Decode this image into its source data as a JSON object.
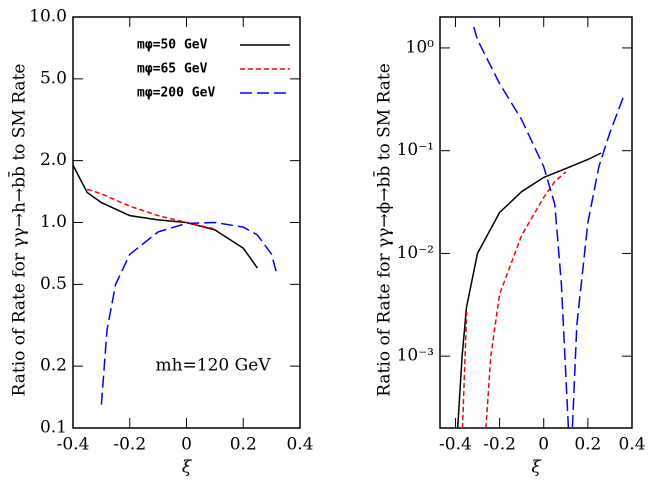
{
  "chart_data": [
    {
      "type": "line",
      "ylabel": "Ratio of Rate for γγ→h→bb̄ to SM Rate",
      "xlabel": "ξ",
      "annotation": "mh=120 GeV",
      "log_y": true,
      "xlim": [
        -0.4,
        0.4
      ],
      "xticks": [
        -0.4,
        -0.2,
        0,
        0.2,
        0.4
      ],
      "ylim": [
        0.1,
        10
      ],
      "yticks": [
        0.1,
        0.2,
        0.5,
        {
          "value": 1,
          "label": "1.0"
        },
        {
          "value": 2,
          "label": "2.0"
        },
        {
          "value": 5,
          "label": "5.0"
        },
        {
          "value": 10,
          "label": "10.0"
        }
      ],
      "series": [
        {
          "name": "mφ=50 GeV",
          "color": "#000000",
          "dash": "solid",
          "x": [
            -0.4,
            -0.35,
            -0.3,
            -0.2,
            -0.1,
            0,
            0.1,
            0.2,
            0.25
          ],
          "values": [
            1.9,
            1.4,
            1.25,
            1.08,
            1.03,
            1.0,
            0.92,
            0.75,
            0.6
          ]
        },
        {
          "name": "mφ=65 GeV",
          "color": "#ff0000",
          "dash": "dashed",
          "x": [
            -0.35,
            -0.3,
            -0.2,
            -0.1,
            0,
            0.1
          ],
          "values": [
            1.45,
            1.38,
            1.2,
            1.08,
            1.0,
            0.93
          ]
        },
        {
          "name": "mφ=200 GeV",
          "color": "#0000ff",
          "dash": "longdash",
          "x": [
            -0.3,
            -0.28,
            -0.25,
            -0.2,
            -0.1,
            0,
            0.1,
            0.2,
            0.25,
            0.3,
            0.32
          ],
          "values": [
            0.13,
            0.3,
            0.5,
            0.7,
            0.9,
            0.99,
            1.0,
            0.95,
            0.87,
            0.7,
            0.55
          ]
        }
      ]
    },
    {
      "type": "line",
      "ylabel": "Ratio of Rate for γγ→ϕ→bb̄ to SM Rate",
      "xlabel": "ξ",
      "log_y": true,
      "xlim": [
        -0.47,
        0.4
      ],
      "xticks": [
        -0.4,
        -0.2,
        0,
        0.2,
        0.4
      ],
      "ylim": [
        0.0002,
        2
      ],
      "yticks": [
        {
          "value": 1,
          "label": "10⁰"
        },
        {
          "value": 0.1,
          "label": "10⁻¹"
        },
        {
          "value": 0.01,
          "label": "10⁻²"
        },
        {
          "value": 0.001,
          "label": "10⁻³"
        }
      ],
      "series": [
        {
          "color": "#000000",
          "dash": "solid",
          "x": [
            -0.39,
            -0.37,
            -0.35,
            -0.3,
            -0.2,
            -0.1,
            0,
            0.1,
            0.2,
            0.26
          ],
          "values": [
            0.0002,
            0.001,
            0.003,
            0.01,
            0.025,
            0.04,
            0.055,
            0.067,
            0.082,
            0.095
          ]
        },
        {
          "color": "#ff0000",
          "dash": "dashed",
          "x": [
            -0.368,
            -0.349,
            -0.3,
            -0.262,
            -0.24,
            -0.2,
            -0.1,
            0,
            0.05,
            0.1
          ],
          "values": [
            0.0002,
            0.0027,
            null,
            0.0002,
            0.001,
            0.004,
            0.015,
            0.035,
            0.05,
            0.062
          ]
        },
        {
          "color": "#0000ff",
          "dash": "longdash",
          "x": [
            -0.317,
            -0.3,
            -0.2,
            -0.1,
            0,
            0.05,
            0.08,
            0.112,
            0.13,
            0.15,
            0.2,
            0.25,
            0.3,
            0.36
          ],
          "values": [
            1.6,
            1.2,
            0.45,
            0.2,
            0.07,
            0.03,
            0.005,
            0.0002,
            0.0002,
            0.002,
            0.02,
            0.07,
            0.15,
            0.33
          ]
        }
      ]
    }
  ]
}
